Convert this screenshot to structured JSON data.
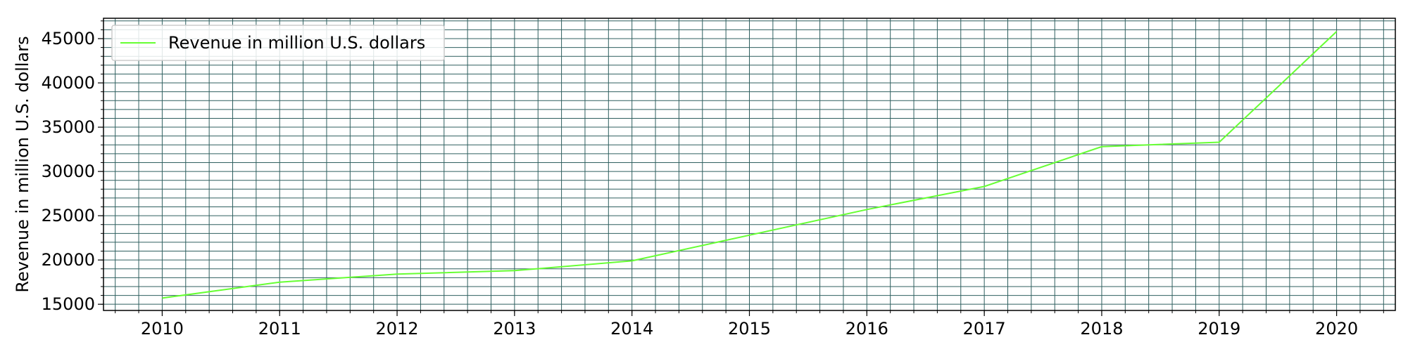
{
  "chart_data": {
    "type": "line",
    "title": "",
    "xlabel": "",
    "ylabel": "Revenue in million U.S. dollars",
    "x": [
      2010,
      2011,
      2012,
      2013,
      2014,
      2015,
      2016,
      2017,
      2018,
      2019,
      2020
    ],
    "series": [
      {
        "name": "Revenue in million U.S. dollars",
        "color": "#66ff33",
        "values": [
          15700,
          17500,
          18400,
          18800,
          19900,
          22800,
          25700,
          28300,
          32800,
          33300,
          45800
        ]
      }
    ],
    "xlim": [
      2009.5,
      2020.5
    ],
    "ylim": [
      14300,
      47300
    ],
    "yticks": [
      15000,
      20000,
      25000,
      30000,
      35000,
      40000,
      45000
    ],
    "xticks": [
      2010,
      2011,
      2012,
      2013,
      2014,
      2015,
      2016,
      2017,
      2018,
      2019,
      2020
    ],
    "grid": "on (major and minor)",
    "grid_color": "#2f5f5f",
    "legend_position": "top-left"
  }
}
